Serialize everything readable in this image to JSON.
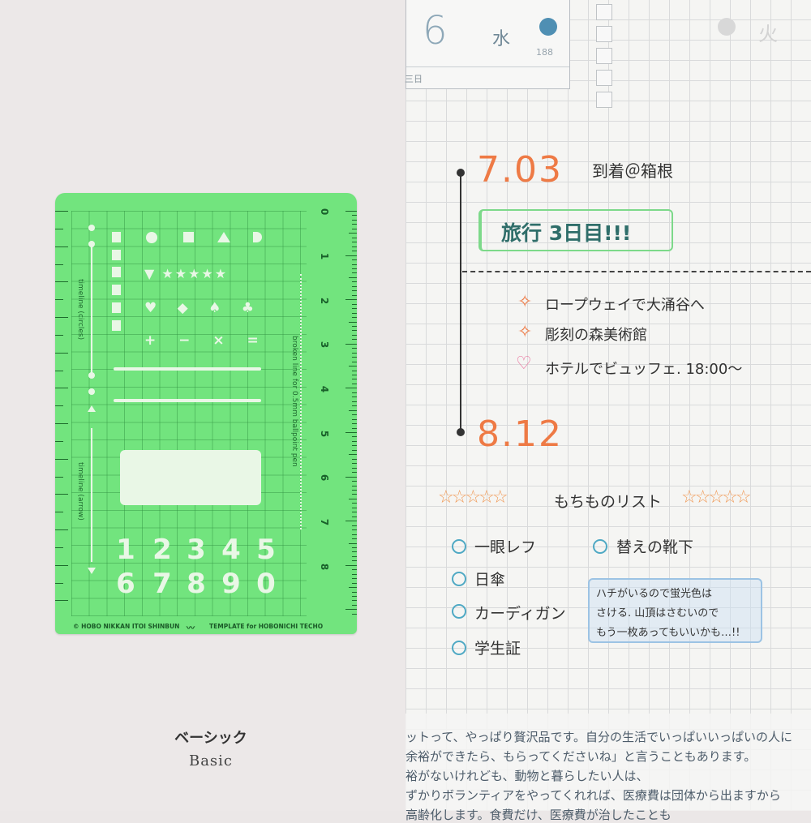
{
  "stencil": {
    "ruler_numbers": [
      "0",
      "1",
      "2",
      "3",
      "4",
      "5",
      "6",
      "7",
      "8"
    ],
    "label_circles": "timeline (circles)",
    "label_arrow": "timeline (arrow)",
    "label_broken": "broken line for 0.5mm ballpoint pen",
    "footer_left": "© HOBO NIKKAN ITOI SHINBUN",
    "footer_right": "TEMPLATE for HOBONICHI TECHO",
    "digits": [
      "1",
      "2",
      "3",
      "4",
      "5",
      "6",
      "7",
      "8",
      "9",
      "0"
    ],
    "color": "#72e47e"
  },
  "caption": {
    "jp": "ベーシック",
    "en": "Basic"
  },
  "planner": {
    "date_day": "6",
    "weekday": "水",
    "day_of_year": "188",
    "sub_label": "三日",
    "next_weekday": "火",
    "date1": "7.03",
    "arrival": "到着＠箱根",
    "banner": "旅行 3日目!!!",
    "items": [
      {
        "icon": "diamond-sparkle-icon",
        "text": "ロープウェイで大涌谷へ"
      },
      {
        "icon": "diamond-sparkle-icon",
        "text": "彫刻の森美術館"
      },
      {
        "icon": "heart-icon",
        "text": "ホテルでビュッフェ. 18:00〜"
      }
    ],
    "date2": "8.12",
    "list_title": "もちものリスト",
    "stars": "☆☆☆☆☆",
    "checklist": [
      "一眼レフ",
      "日傘",
      "カーディガン",
      "学生証",
      "替えの靴下"
    ],
    "bubble": [
      "ハチがいるので蛍光色は",
      "さける. 山頂はさむいので",
      "もう一枚あってもいいかも…!!"
    ],
    "accent": "#ee7a45"
  },
  "body_text": [
    "ットって、やっぱり贅沢品です。自分の生活でいっぱいいっぱいの人に",
    "余裕ができたら、もらってくださいね」と言うこともあります。",
    "裕がないけれども、動物と暮らしたい人は、",
    "ずかりボランティアをやってくれれば、医療費は団体から出ますから",
    "高齢化します。食費だけ、医療費が治したことも"
  ]
}
